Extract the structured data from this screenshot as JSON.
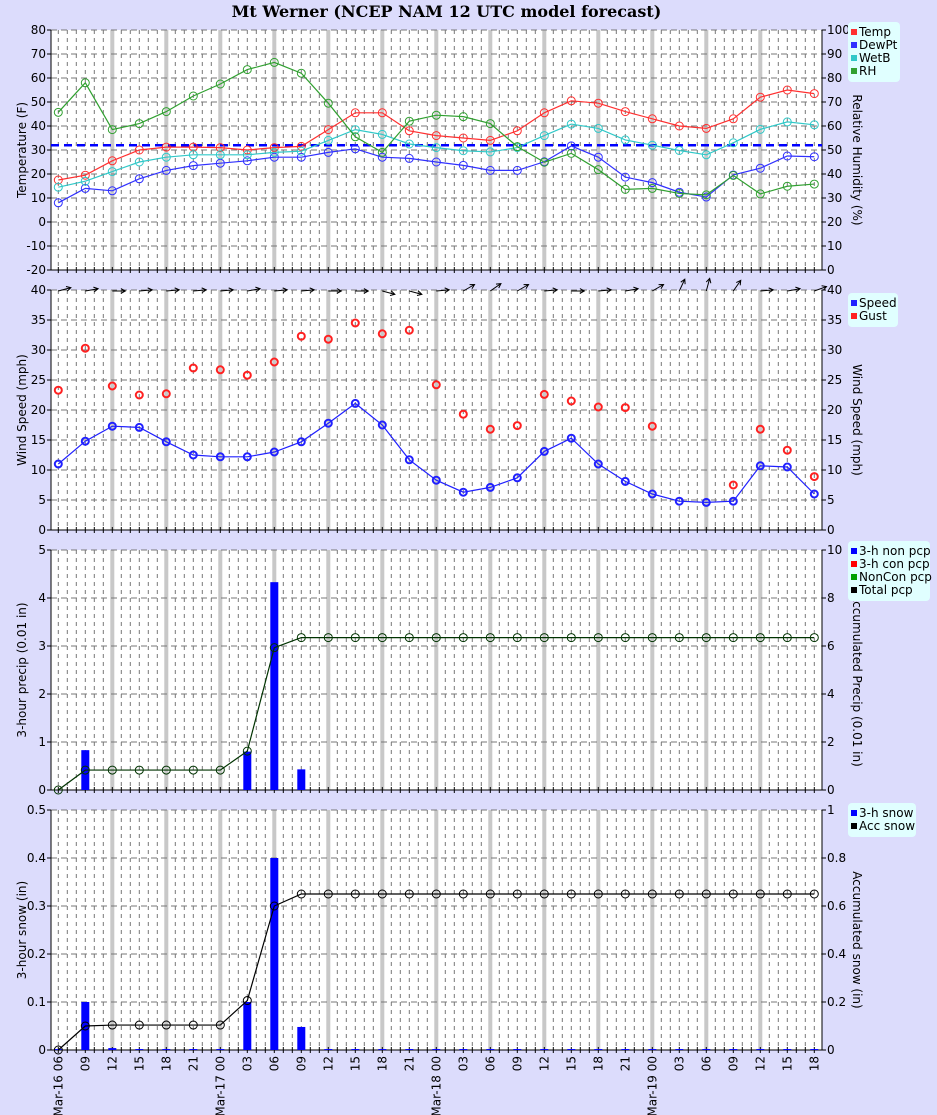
{
  "title": "Mt Werner (NCEP NAM 12 UTC model forecast)",
  "x_labels": [
    "Mar-16 06",
    "09",
    "12",
    "15",
    "18",
    "21",
    "Mar-17 00",
    "03",
    "06",
    "09",
    "12",
    "15",
    "18",
    "21",
    "Mar-18 00",
    "03",
    "06",
    "09",
    "12",
    "15",
    "18",
    "21",
    "Mar-19 00",
    "03",
    "06",
    "09",
    "12",
    "15",
    "18"
  ],
  "colors": {
    "background": "#dcdcfc",
    "legend_bg": "#e0ffff",
    "major_grid": "#c8c8c8"
  },
  "chart_data": [
    {
      "type": "line",
      "ylabel": "Temperature (F)",
      "ylabel_right": "Relative Humidity (%)",
      "ylim": [
        -20,
        80
      ],
      "yticks": [
        -20,
        -10,
        0,
        10,
        20,
        30,
        40,
        50,
        60,
        70,
        80
      ],
      "ylim_right": [
        0,
        100
      ],
      "yticks_right": [
        0,
        10,
        20,
        30,
        40,
        50,
        60,
        70,
        80,
        90,
        100
      ],
      "grid": true,
      "legend_placement": "right",
      "freezing_line": {
        "value": 32,
        "color": "#0000ff",
        "style": "dashed"
      },
      "series": [
        {
          "name": "Temp",
          "axis": "left",
          "color": "#ff3030",
          "values": [
            17.5,
            19.5,
            25.5,
            30,
            31.2,
            31.2,
            31,
            30,
            31,
            31.5,
            38.5,
            45.5,
            45.5,
            38,
            36,
            35,
            34,
            38,
            45.5,
            50.5,
            49.5,
            46,
            43,
            40,
            39,
            43,
            52,
            55,
            53.5
          ]
        },
        {
          "name": "DewPt",
          "axis": "left",
          "color": "#3030ff",
          "values": [
            8,
            14,
            13,
            18,
            21.5,
            23.5,
            24.5,
            25.5,
            27,
            27,
            29,
            30.5,
            27,
            26.5,
            25,
            23.6,
            21.5,
            21.5,
            25.1,
            31.7,
            27,
            18.7,
            16.4,
            12.4,
            10.4,
            19.6,
            22.4,
            27.5,
            27.2
          ]
        },
        {
          "name": "WetB",
          "axis": "left",
          "color": "#30c8c8",
          "values": [
            14.5,
            17,
            21,
            25,
            27,
            28,
            28,
            28,
            29,
            29.5,
            34,
            38.5,
            36.5,
            32.5,
            31,
            29.7,
            29.2,
            31,
            36,
            40.8,
            39,
            34.2,
            32,
            29.8,
            28,
            33,
            38.6,
            41.7,
            40.5
          ]
        },
        {
          "name": "RH",
          "axis": "right",
          "color": "#30a030",
          "values": [
            65.7,
            78,
            58.5,
            61,
            66,
            72.5,
            77.5,
            83.5,
            86.5,
            82,
            69.5,
            55.5,
            49,
            62,
            64.5,
            63.9,
            61,
            51.4,
            44.9,
            48.6,
            41.8,
            33.6,
            34,
            31.9,
            31.3,
            39.4,
            31.7,
            34.9,
            35.8
          ]
        }
      ]
    },
    {
      "type": "line",
      "ylabel": "Wind Speed (mph)",
      "ylabel_right": "Wind Speed (mph)",
      "ylim": [
        0,
        40
      ],
      "yticks": [
        0,
        5,
        10,
        15,
        20,
        25,
        30,
        35,
        40
      ],
      "ylim_right": [
        0,
        40
      ],
      "yticks_right": [
        0,
        5,
        10,
        15,
        20,
        25,
        30,
        35,
        40
      ],
      "grid": true,
      "legend_placement": "right",
      "wind_direction_deg": [
        255,
        260,
        270,
        265,
        265,
        265,
        265,
        260,
        265,
        265,
        270,
        270,
        285,
        285,
        265,
        240,
        235,
        240,
        265,
        270,
        265,
        260,
        240,
        205,
        195,
        215,
        265,
        260,
        250
      ],
      "series": [
        {
          "name": "Speed",
          "axis": "left",
          "color": "#2020ff",
          "style": "line",
          "values": [
            11,
            14.8,
            17.3,
            17.1,
            14.7,
            12.5,
            12.2,
            12.2,
            13,
            14.7,
            17.8,
            21.1,
            17.5,
            11.7,
            8.3,
            6.3,
            7.1,
            8.7,
            13.1,
            15.3,
            11,
            8.1,
            6,
            4.8,
            4.6,
            4.8,
            10.7,
            10.5,
            6
          ]
        },
        {
          "name": "Gust",
          "axis": "left",
          "color": "#ff2020",
          "style": "points",
          "values": [
            23.3,
            30.3,
            24,
            22.5,
            22.7,
            27,
            26.7,
            25.8,
            28,
            32.3,
            31.8,
            34.5,
            32.7,
            33.3,
            24.2,
            19.3,
            16.8,
            17.4,
            22.6,
            21.5,
            20.5,
            20.4,
            17.3,
            null,
            null,
            7.5,
            16.8,
            13.3,
            8.9
          ]
        }
      ]
    },
    {
      "type": "bar",
      "ylabel": "3-hour precip (0.01 in)",
      "ylabel_right": "Accumulated Precip (0.01 in)",
      "ylim": [
        0,
        5
      ],
      "yticks": [
        0,
        1,
        2,
        3,
        4,
        5
      ],
      "ylim_right": [
        0,
        10
      ],
      "yticks_right": [
        0,
        2,
        4,
        6,
        8,
        10
      ],
      "grid": true,
      "legend_placement": "right",
      "legend": [
        {
          "name": "3-h non pcp",
          "color": "#0000ff"
        },
        {
          "name": "3-h con pcp",
          "color": "#ff0000"
        },
        {
          "name": "NonCon pcp",
          "color": "#00a000"
        },
        {
          "name": "Total pcp",
          "color": "#000000"
        }
      ],
      "series": [
        {
          "name": "3-h non pcp",
          "axis": "left",
          "color": "#0000ff",
          "style": "bar",
          "values": [
            0,
            0.83,
            0,
            0,
            0,
            0,
            0,
            0.8,
            4.33,
            0.43,
            0,
            0,
            0,
            0,
            0,
            0,
            0,
            0,
            0,
            0,
            0,
            0,
            0,
            0,
            0,
            0,
            0,
            0,
            0
          ]
        },
        {
          "name": "Total pcp",
          "axis": "right",
          "color": "#003300",
          "style": "line",
          "values": [
            0,
            0.83,
            0.83,
            0.83,
            0.83,
            0.83,
            0.83,
            1.62,
            5.93,
            6.35,
            6.35,
            6.35,
            6.35,
            6.35,
            6.35,
            6.35,
            6.35,
            6.35,
            6.35,
            6.35,
            6.35,
            6.35,
            6.35,
            6.35,
            6.35,
            6.35,
            6.35,
            6.35,
            6.35
          ]
        }
      ]
    },
    {
      "type": "bar",
      "ylabel": "3-hour snow (in)",
      "ylabel_right": "Accumulated snow (in)",
      "ylim": [
        0,
        0.5
      ],
      "yticks": [
        "0",
        "0.1",
        "0.2",
        "0.3",
        "0.4",
        "0.5"
      ],
      "ylim_right": [
        0,
        1
      ],
      "yticks_right": [
        "0",
        "0.2",
        "0.4",
        "0.6",
        "0.8",
        "1"
      ],
      "grid": true,
      "legend_placement": "right",
      "legend": [
        {
          "name": "3-h snow",
          "color": "#0000ff"
        },
        {
          "name": "Acc snow",
          "color": "#000000"
        }
      ],
      "series": [
        {
          "name": "3-h snow",
          "axis": "left",
          "color": "#0000ff",
          "style": "bar",
          "values": [
            0.002,
            0.1,
            0.004,
            0.002,
            0.002,
            0.002,
            0.002,
            0.1,
            0.4,
            0.048,
            0.002,
            0.002,
            0.002,
            0.002,
            0.002,
            0.002,
            0.002,
            0.002,
            0.002,
            0.002,
            0.002,
            0.002,
            0.002,
            0.002,
            0.002,
            0.002,
            0.002,
            0.002,
            0.002
          ]
        },
        {
          "name": "Acc snow",
          "axis": "right",
          "color": "#000000",
          "style": "line",
          "values": [
            0,
            0.1,
            0.104,
            0.104,
            0.104,
            0.104,
            0.104,
            0.206,
            0.6,
            0.65,
            0.65,
            0.65,
            0.65,
            0.65,
            0.65,
            0.65,
            0.65,
            0.65,
            0.65,
            0.65,
            0.65,
            0.65,
            0.65,
            0.65,
            0.65,
            0.65,
            0.65,
            0.65,
            0.65
          ]
        }
      ]
    }
  ]
}
